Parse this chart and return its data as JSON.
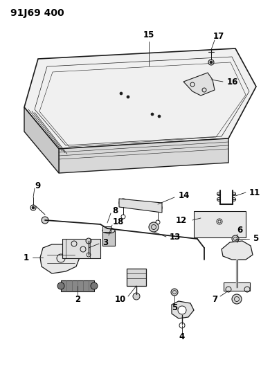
{
  "title": "91J69 400",
  "background_color": "#ffffff",
  "line_color": "#1a1a1a",
  "text_color": "#000000",
  "title_fontsize": 10,
  "label_fontsize": 8.5,
  "fig_width": 3.9,
  "fig_height": 5.33,
  "dpi": 100
}
